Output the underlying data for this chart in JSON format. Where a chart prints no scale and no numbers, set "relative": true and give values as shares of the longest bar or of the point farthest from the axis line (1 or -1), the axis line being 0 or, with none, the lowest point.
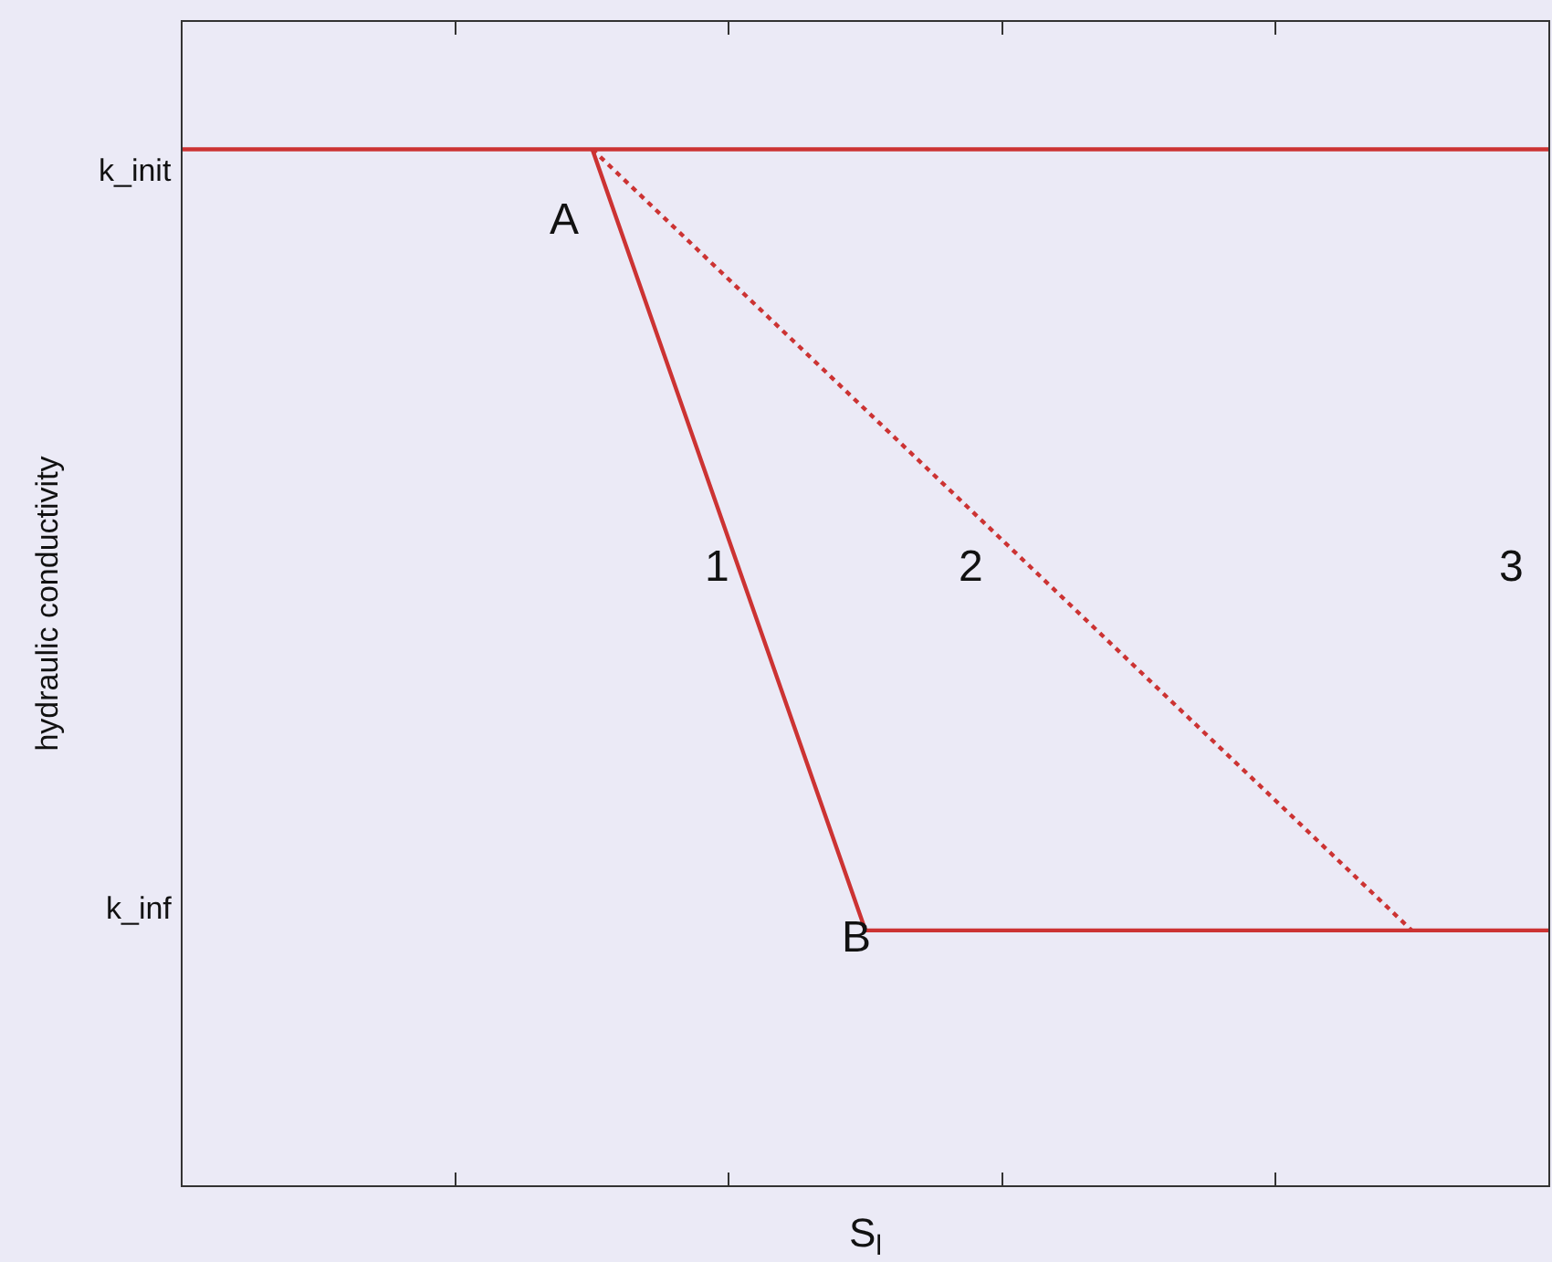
{
  "chart_data": {
    "type": "line",
    "relative": true,
    "xlabel": "S$_{l}$",
    "ylabel": "hydraulic conductivity",
    "categories": [
      null,
      null,
      null,
      null,
      null,
      null,
      null,
      null,
      null,
      null,
      null,
      null,
      null,
      null,
      null,
      null,
      null,
      null,
      null,
      null,
      null
    ],
    "series": [
      {
        "color": "#cc3333",
        "values": [
          null,
          null,
          null,
          null,
          null,
          null,
          1,
          null,
          null,
          null,
          0.246,
          null,
          null,
          null,
          null,
          null,
          null,
          null,
          null,
          null,
          0.246
        ],
        "line_style": "solid"
      },
      {
        "color": "#cc3333",
        "values": [
          null,
          null,
          null,
          null,
          null,
          null,
          1,
          null,
          null,
          null,
          null,
          null,
          null,
          null,
          null,
          null,
          null,
          null,
          0.246,
          null,
          null
        ],
        "line_style": "dotted"
      },
      {
        "color": "#cc3333",
        "values": [
          1,
          null,
          null,
          null,
          null,
          null,
          null,
          null,
          null,
          null,
          null,
          null,
          null,
          null,
          null,
          null,
          null,
          null,
          null,
          null,
          1
        ],
        "line_style": "solid"
      }
    ],
    "annotations": [
      "k_init",
      "k_inf",
      "A",
      "B",
      "1",
      "2",
      "3"
    ],
    "grid": false,
    "legend": false
  }
}
